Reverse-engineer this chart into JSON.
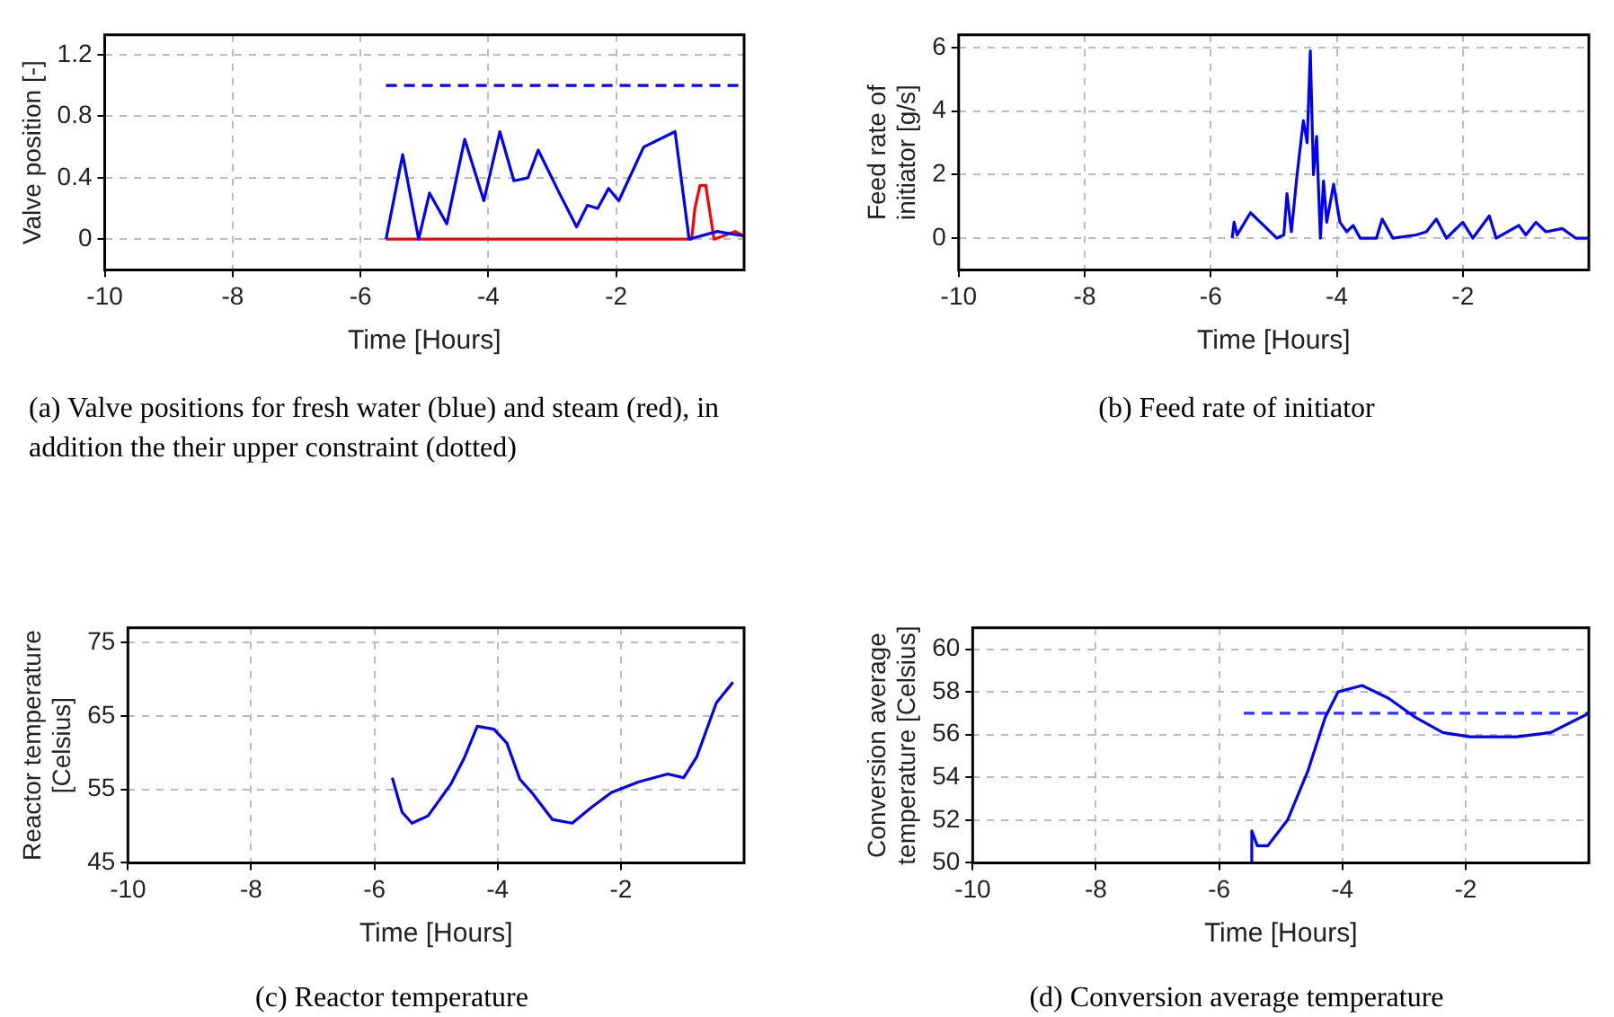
{
  "chart_data": [
    {
      "type": "line",
      "xlabel": "Time [Hours]",
      "ylabel": "Valve position [-]",
      "xlim": [
        -10,
        0
      ],
      "xticks": [
        -10,
        -8,
        -6,
        -4,
        -2
      ],
      "ylim": [
        -0.2,
        1.33
      ],
      "yticks": [
        0,
        0.4,
        0.8,
        1.2
      ],
      "grid": true,
      "legend": false,
      "marker": "none",
      "annotations": [
        "(a) Valve positions for fresh water (blue) and steam (red), in addition the their upper constraint (dotted)"
      ],
      "series": [
        {
          "color": "#0000ff",
          "x": [
            -5.6,
            -5.34,
            -5.09,
            -4.92,
            -4.65,
            -4.37,
            -4.07,
            -3.82,
            -3.6,
            -3.38,
            -3.22,
            -2.89,
            -2.62,
            -2.45,
            -2.29,
            -2.12,
            -1.96,
            -1.57,
            -1.08,
            -0.86,
            -0.42,
            0
          ],
          "values": [
            0,
            0.55,
            0,
            0.3,
            0.1,
            0.65,
            0.25,
            0.7,
            0.38,
            0.4,
            0.58,
            0.3,
            0.08,
            0.22,
            0.2,
            0.33,
            0.25,
            0.6,
            0.7,
            0,
            0.05,
            0.02
          ]
        },
        {
          "color": "#ff0000",
          "x": [
            -5.6,
            -0.82,
            -0.77,
            -0.69,
            -0.6,
            -0.47,
            -0.14,
            0
          ],
          "values": [
            0,
            0,
            0.2,
            0.35,
            0.35,
            0,
            0.05,
            0.02
          ]
        },
        {
          "color": "#0000ff",
          "line_style": "dashed",
          "x": [
            -5.6,
            0
          ],
          "values": [
            1,
            1
          ]
        }
      ]
    },
    {
      "type": "line",
      "xlabel": "Time [Hours]",
      "ylabel": "Feed rate of initiator [g/s]",
      "xlim": [
        -10,
        0
      ],
      "xticks": [
        -10,
        -8,
        -6,
        -4,
        -2
      ],
      "ylim": [
        -1,
        6.4
      ],
      "yticks": [
        0,
        2,
        4,
        6
      ],
      "grid": true,
      "legend": false,
      "marker": "none",
      "annotations": [
        "(b) Feed rate of initiator"
      ],
      "series": [
        {
          "color": "#0000ff",
          "x": [
            -5.66,
            -5.63,
            -5.58,
            -5.37,
            -5.16,
            -4.95,
            -4.84,
            -4.79,
            -4.72,
            -4.63,
            -4.53,
            -4.47,
            -4.42,
            -4.37,
            -4.32,
            -4.26,
            -4.21,
            -4.16,
            -4.05,
            -3.95,
            -3.84,
            -3.74,
            -3.63,
            -3.37,
            -3.28,
            -3.11,
            -2.74,
            -2.58,
            -2.42,
            -2.26,
            -2,
            -1.84,
            -1.58,
            -1.47,
            -1.11,
            -1,
            -0.84,
            -0.68,
            -0.42,
            -0.21,
            0
          ],
          "values": [
            0,
            0.5,
            0.1,
            0.8,
            0.4,
            0,
            0.1,
            1.4,
            0.2,
            2,
            3.7,
            3,
            5.9,
            2,
            3.2,
            0,
            1.8,
            0.5,
            1.7,
            0.5,
            0.2,
            0.4,
            0,
            0,
            0.6,
            0,
            0.1,
            0.2,
            0.6,
            0,
            0.5,
            0,
            0.7,
            0,
            0.4,
            0.1,
            0.5,
            0.2,
            0.3,
            0,
            0
          ]
        }
      ]
    },
    {
      "type": "line",
      "xlabel": "Time [Hours]",
      "ylabel": "Reactor temperature [Celsius]",
      "xlim": [
        -10,
        0
      ],
      "xticks": [
        -10,
        -8,
        -6,
        -4,
        -2
      ],
      "ylim": [
        45,
        77
      ],
      "yticks": [
        45,
        55,
        65,
        75
      ],
      "grid": true,
      "legend": false,
      "marker": "none",
      "annotations": [
        "(c) Reactor temperature"
      ],
      "series": [
        {
          "color": "#0000ff",
          "x": [
            -5.71,
            -5.55,
            -5.39,
            -5.13,
            -4.76,
            -4.54,
            -4.33,
            -4.06,
            -3.85,
            -3.64,
            -3.43,
            -3.11,
            -2.79,
            -2.47,
            -2.15,
            -1.72,
            -1.24,
            -0.98,
            -0.77,
            -0.45,
            -0.18
          ],
          "values": [
            56.6,
            51.9,
            50.4,
            51.4,
            55.7,
            59.3,
            63.6,
            63.2,
            61.3,
            56.4,
            54.4,
            50.9,
            50.4,
            52.6,
            54.6,
            56,
            57.1,
            56.6,
            59.4,
            66.8,
            69.6
          ]
        }
      ]
    },
    {
      "type": "line",
      "xlabel": "Time [Hours]",
      "ylabel": "Conversion average temperature [Celsius]",
      "xlim": [
        -10,
        0
      ],
      "xticks": [
        -10,
        -8,
        -6,
        -4,
        -2
      ],
      "ylim": [
        50,
        61
      ],
      "yticks": [
        50,
        52,
        54,
        56,
        58,
        60
      ],
      "grid": true,
      "legend": false,
      "marker": "none",
      "annotations": [
        "(d) Conversion average temperature"
      ],
      "series": [
        {
          "color": "#0000ff",
          "x": [
            -5.48,
            -5.47,
            -5.38,
            -5.21,
            -4.89,
            -4.56,
            -4.28,
            -4.07,
            -3.68,
            -3.25,
            -2.81,
            -2.37,
            -1.93,
            -1.17,
            -0.62,
            0
          ],
          "values": [
            50,
            51.5,
            50.8,
            50.8,
            52,
            54.3,
            56.8,
            58,
            58.3,
            57.7,
            56.8,
            56.1,
            55.9,
            55.9,
            56.1,
            57
          ]
        },
        {
          "color": "#3333ff",
          "line_style": "dashed",
          "x": [
            -5.6,
            0
          ],
          "values": [
            57,
            57
          ]
        }
      ]
    }
  ]
}
